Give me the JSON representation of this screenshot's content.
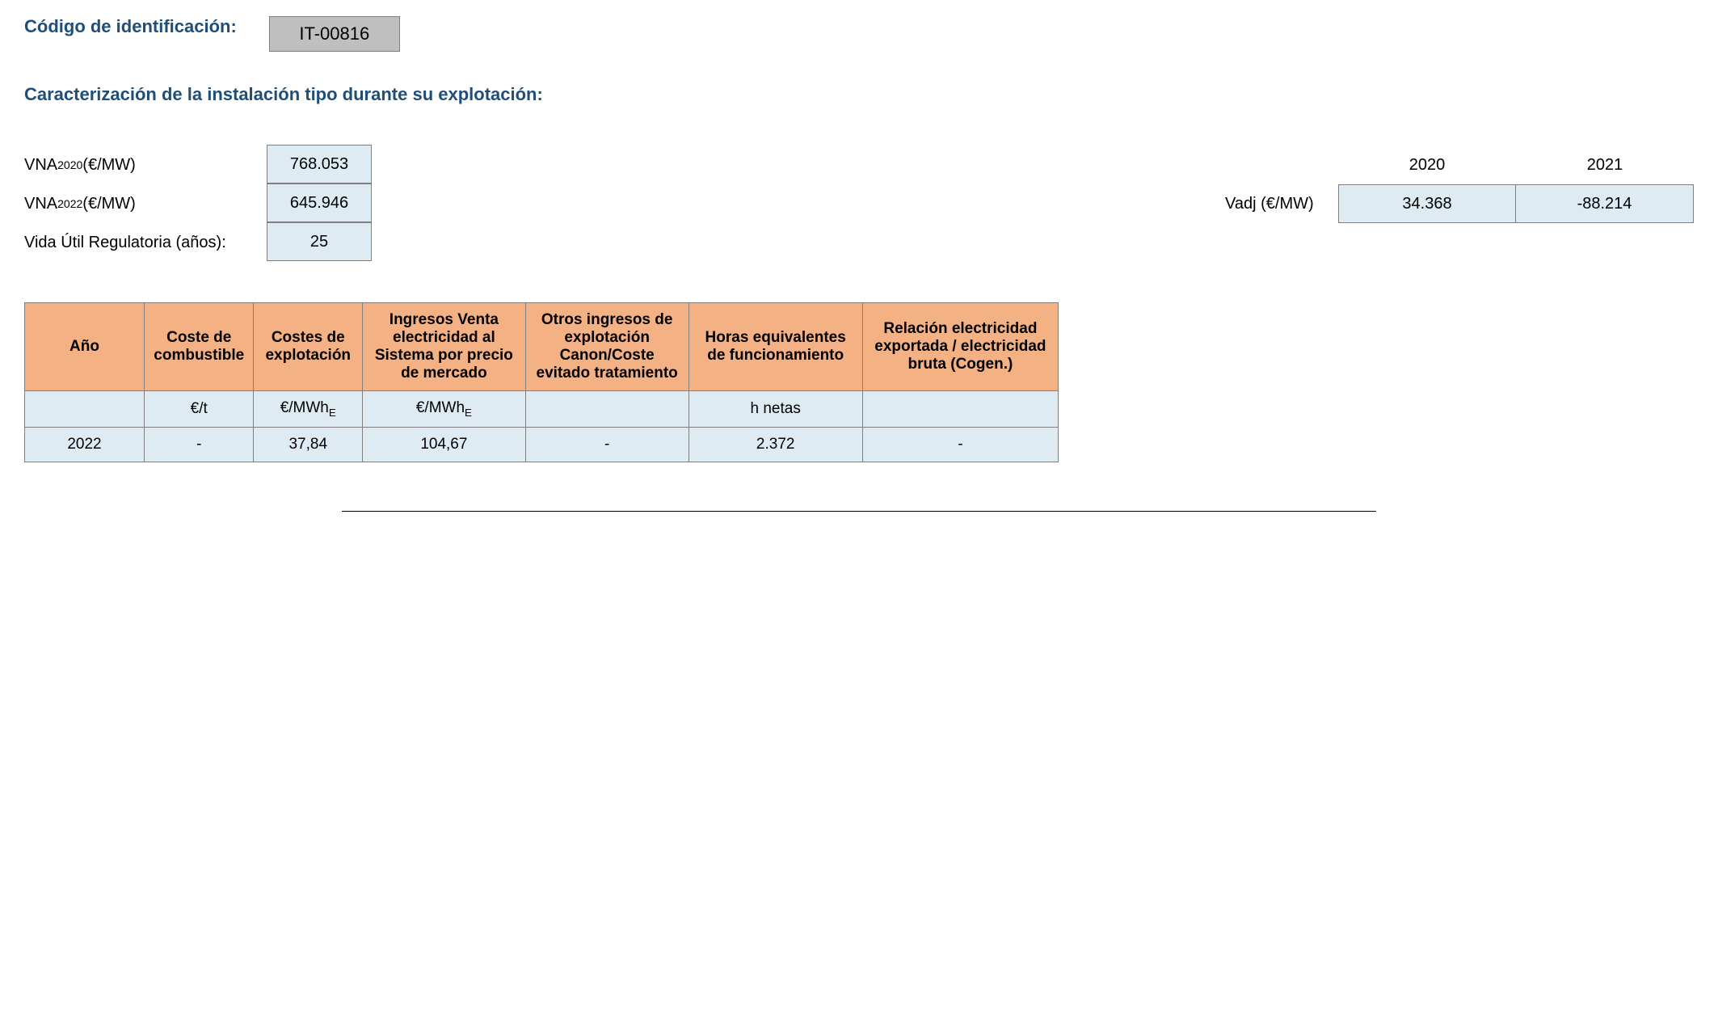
{
  "header": {
    "code_label": "Código de identificación:",
    "code_value": "IT-00816",
    "section_title": "Caracterización de la instalación tipo durante su explotación:"
  },
  "params": {
    "vna2020_label_prefix": "VNA",
    "vna2020_label_sub": "2020",
    "vna2020_label_suffix": " (€/MW)",
    "vna2020_value": "768.053",
    "vna2022_label_prefix": "VNA",
    "vna2022_label_sub": "2022",
    "vna2022_label_suffix": " (€/MW)",
    "vna2022_value": "645.946",
    "vida_label": "Vida Útil Regulatoria (años):",
    "vida_value": "25"
  },
  "vadj": {
    "label": "Vadj (€/MW)",
    "years": [
      "2020",
      "2021"
    ],
    "values": [
      "34.368",
      "-88.214"
    ]
  },
  "table": {
    "headers": {
      "ano": "Año",
      "coste_comb": "Coste de combustible",
      "costes_expl": "Costes de explotación",
      "ingresos": "Ingresos Venta electricidad al Sistema por precio de mercado",
      "otros": "Otros ingresos de explotación Canon/Coste evitado tratamiento",
      "horas": "Horas equivalentes de funcionamiento",
      "relacion": "Relación electricidad exportada / electricidad bruta (Cogen.)"
    },
    "units": {
      "ano": "",
      "coste_comb": "€/t",
      "costes_expl_prefix": "€/MWh",
      "costes_expl_sub": "E",
      "ingresos_prefix": "€/MWh",
      "ingresos_sub": "E",
      "otros": "",
      "horas": "h netas",
      "relacion": ""
    },
    "rows": [
      {
        "ano": "2022",
        "coste_comb": "-",
        "costes_expl": "37,84",
        "ingresos": "104,67",
        "otros": "-",
        "horas": "2.372",
        "relacion": "-"
      }
    ]
  },
  "style": {
    "heading_color": "#1f4e79",
    "value_bg": "#deebf3",
    "header_bg": "#f4b183",
    "border_color": "#7f7f7f",
    "code_bg": "#bfbfbf"
  }
}
